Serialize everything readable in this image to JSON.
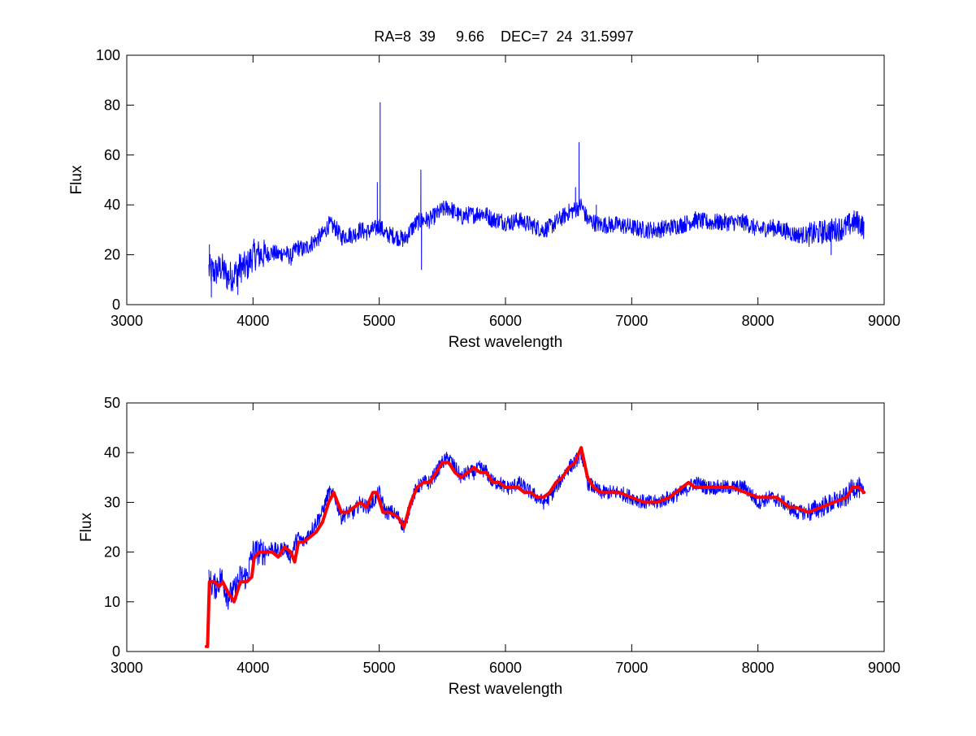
{
  "figure": {
    "title": "RA=8  39     9.66    DEC=7  24  31.5997"
  },
  "colors": {
    "spectrum": "#0000ff",
    "fit": "#ff0000",
    "axes": "#000000",
    "background": "#ffffff"
  },
  "chart_data": [
    {
      "type": "line",
      "title": "RA=8  39     9.66    DEC=7  24  31.5997",
      "xlabel": "Rest wavelength",
      "ylabel": "Flux",
      "xlim": [
        3000,
        9000
      ],
      "ylim": [
        0,
        100
      ],
      "xticks": [
        3000,
        4000,
        5000,
        6000,
        7000,
        8000,
        9000
      ],
      "yticks": [
        0,
        20,
        40,
        60,
        80,
        100
      ],
      "grid": false,
      "legend": "none",
      "series": [
        {
          "color": "#0000ff",
          "style": "thin",
          "noise": 3.5,
          "x": [
            3650,
            3700,
            3750,
            3800,
            3850,
            3900,
            3950,
            4000,
            4050,
            4100,
            4150,
            4200,
            4250,
            4300,
            4350,
            4400,
            4450,
            4500,
            4550,
            4600,
            4650,
            4700,
            4750,
            4800,
            4850,
            4900,
            4950,
            4990,
            5000,
            5050,
            5100,
            5150,
            5200,
            5250,
            5300,
            5350,
            5400,
            5450,
            5500,
            5550,
            5600,
            5650,
            5700,
            5750,
            5800,
            5850,
            5900,
            5950,
            6000,
            6050,
            6100,
            6150,
            6200,
            6250,
            6300,
            6350,
            6400,
            6450,
            6500,
            6550,
            6600,
            6650,
            6700,
            6750,
            6800,
            6900,
            7000,
            7100,
            7200,
            7300,
            7400,
            7500,
            7600,
            7700,
            7800,
            7900,
            8000,
            8100,
            8200,
            8250,
            8300,
            8400,
            8500,
            8600,
            8700,
            8750,
            8800,
            8840
          ],
          "y": [
            14,
            13,
            15,
            11,
            12,
            15,
            15,
            20,
            20,
            20,
            21,
            20,
            21,
            19,
            23,
            22,
            24,
            26,
            28,
            32,
            31,
            27,
            28,
            28,
            30,
            29,
            30,
            31,
            32,
            28,
            28,
            27,
            26,
            30,
            33,
            34,
            34,
            36,
            38,
            39,
            37,
            35,
            36,
            36,
            37,
            36,
            34,
            34,
            33,
            33,
            34,
            33,
            32,
            31,
            30,
            31,
            33,
            35,
            37,
            38,
            40,
            34,
            33,
            32,
            32,
            32,
            31,
            30,
            30,
            31,
            32,
            34,
            33,
            33,
            33,
            33,
            30,
            31,
            30,
            29,
            28,
            28,
            29,
            30,
            31,
            33,
            33,
            31
          ],
          "spikes": [
            {
              "x": 4985,
              "y": 49
            },
            {
              "x": 5007,
              "y": 81
            },
            {
              "x": 5330,
              "y": 54
            },
            {
              "x": 5335,
              "y": 14
            },
            {
              "x": 6555,
              "y": 47
            },
            {
              "x": 6583,
              "y": 65
            },
            {
              "x": 6720,
              "y": 40
            },
            {
              "x": 3655,
              "y": 24
            },
            {
              "x": 3670,
              "y": 3
            },
            {
              "x": 3880,
              "y": 4
            },
            {
              "x": 8580,
              "y": 20
            }
          ]
        }
      ]
    },
    {
      "type": "line",
      "xlabel": "Rest wavelength",
      "ylabel": "Flux",
      "xlim": [
        3000,
        9000
      ],
      "ylim": [
        0,
        50
      ],
      "xticks": [
        3000,
        4000,
        5000,
        6000,
        7000,
        8000,
        9000
      ],
      "yticks": [
        0,
        10,
        20,
        30,
        40,
        50
      ],
      "grid": false,
      "legend": "none",
      "series": [
        {
          "color": "#0000ff",
          "style": "thin",
          "noise": 1.5,
          "x": [
            3650,
            3700,
            3750,
            3800,
            3850,
            3900,
            3950,
            4000,
            4050,
            4100,
            4150,
            4200,
            4250,
            4300,
            4350,
            4400,
            4450,
            4500,
            4550,
            4600,
            4650,
            4700,
            4750,
            4800,
            4850,
            4900,
            4950,
            5000,
            5050,
            5100,
            5150,
            5200,
            5250,
            5300,
            5350,
            5400,
            5450,
            5500,
            5550,
            5600,
            5650,
            5700,
            5750,
            5800,
            5850,
            5900,
            5950,
            6000,
            6050,
            6100,
            6150,
            6200,
            6250,
            6300,
            6350,
            6400,
            6450,
            6500,
            6550,
            6600,
            6650,
            6700,
            6750,
            6800,
            6900,
            7000,
            7100,
            7200,
            7300,
            7400,
            7500,
            7600,
            7700,
            7800,
            7900,
            8000,
            8100,
            8200,
            8250,
            8300,
            8400,
            8500,
            8600,
            8700,
            8750,
            8800,
            8840
          ],
          "y": [
            14,
            13,
            15,
            11,
            12,
            15,
            15,
            20,
            20,
            20,
            21,
            20,
            21,
            19,
            23,
            22,
            24,
            26,
            28,
            32,
            31,
            27,
            28,
            28,
            30,
            29,
            30,
            32,
            28,
            28,
            27,
            25,
            30,
            33,
            34,
            34,
            36,
            38,
            39,
            37,
            35,
            36,
            36,
            37,
            36,
            34,
            34,
            33,
            33,
            34,
            33,
            32,
            31,
            30,
            31,
            33,
            35,
            37,
            38,
            40,
            34,
            33,
            32,
            32,
            32,
            31,
            30,
            30,
            31,
            32,
            34,
            33,
            33,
            33,
            33,
            30,
            31,
            30,
            29,
            28,
            28,
            29,
            30,
            31,
            33,
            33,
            31
          ]
        },
        {
          "color": "#ff0000",
          "style": "thick",
          "x": [
            3630,
            3640,
            3655,
            3700,
            3730,
            3760,
            3800,
            3850,
            3900,
            3950,
            3990,
            4010,
            4050,
            4100,
            4150,
            4200,
            4250,
            4300,
            4330,
            4360,
            4400,
            4450,
            4500,
            4550,
            4600,
            4640,
            4700,
            4750,
            4800,
            4850,
            4900,
            4950,
            4980,
            5030,
            5080,
            5150,
            5195,
            5250,
            5300,
            5350,
            5400,
            5450,
            5500,
            5550,
            5600,
            5650,
            5700,
            5750,
            5800,
            5850,
            5900,
            5950,
            6000,
            6050,
            6100,
            6150,
            6200,
            6250,
            6300,
            6350,
            6400,
            6450,
            6500,
            6550,
            6600,
            6650,
            6700,
            6750,
            6800,
            6900,
            7000,
            7100,
            7200,
            7300,
            7400,
            7450,
            7500,
            7600,
            7700,
            7800,
            7900,
            8000,
            8100,
            8150,
            8200,
            8250,
            8300,
            8400,
            8500,
            8600,
            8700,
            8750,
            8800,
            8840
          ],
          "y": [
            1,
            1,
            14,
            14,
            13,
            14,
            12,
            10,
            14,
            14,
            15,
            19,
            20,
            20,
            20,
            19,
            21,
            20,
            18,
            22,
            22,
            23,
            24,
            26,
            30,
            32,
            28,
            28,
            29,
            30,
            29,
            32,
            32,
            28,
            28,
            27,
            25,
            30,
            33,
            34,
            34,
            36,
            38,
            38,
            36,
            35,
            36,
            37,
            36,
            36,
            34,
            34,
            33,
            33,
            33,
            32,
            32,
            31,
            31,
            32,
            34,
            35,
            37,
            38,
            41,
            35,
            33,
            32,
            32,
            32,
            31,
            30,
            30,
            31,
            33,
            34,
            33,
            33,
            33,
            33,
            32,
            31,
            31,
            31,
            30,
            29,
            29,
            28,
            29,
            30,
            31,
            33,
            33,
            32
          ]
        }
      ]
    }
  ]
}
